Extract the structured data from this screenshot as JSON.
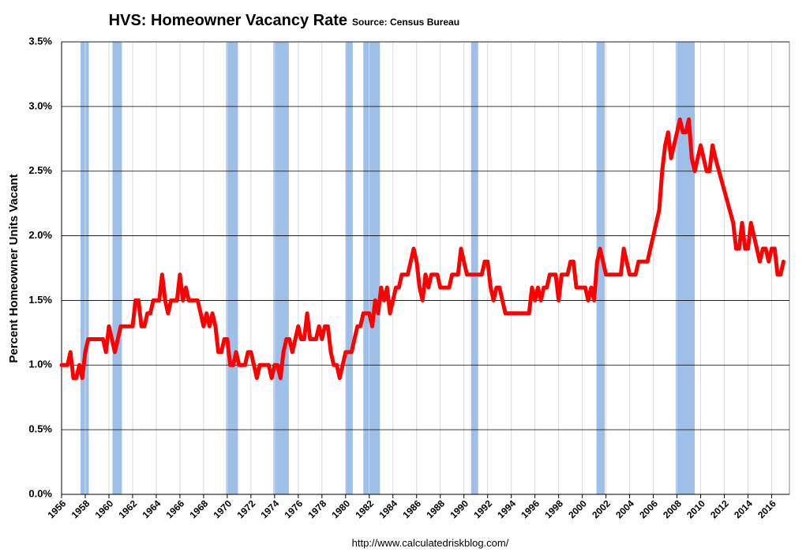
{
  "chart_data": {
    "type": "line",
    "title": "HVS: Homeowner Vacancy Rate",
    "subtitle": "Source: Census Bureau",
    "y_label": "Percent Homeowner Units Vacant",
    "footer": "http://www.calculatedriskblog.com/",
    "xlim": [
      1956,
      2017.5
    ],
    "ylim": [
      0,
      3.5
    ],
    "xticks": [
      1956,
      1958,
      1960,
      1962,
      1964,
      1966,
      1968,
      1970,
      1972,
      1974,
      1976,
      1978,
      1980,
      1982,
      1984,
      1986,
      1988,
      1990,
      1992,
      1994,
      1996,
      1998,
      2000,
      2002,
      2004,
      2006,
      2008,
      2010,
      2012,
      2014,
      2016
    ],
    "yticks": [
      {
        "value": 0,
        "label": "0.0%"
      },
      {
        "value": 0.5,
        "label": "0.5%"
      },
      {
        "value": 1,
        "label": "1.0%"
      },
      {
        "value": 1.5,
        "label": "1.5%"
      },
      {
        "value": 2,
        "label": "2.0%"
      },
      {
        "value": 2.5,
        "label": "2.5%"
      },
      {
        "value": 3,
        "label": "3.0%"
      },
      {
        "value": 3.5,
        "label": "3.5%"
      }
    ],
    "grid": true,
    "recession_color": "#9dbfe8",
    "recessions": [
      [
        1957.6,
        1958.3
      ],
      [
        1960.3,
        1961.1
      ],
      [
        1969.9,
        1970.9
      ],
      [
        1973.9,
        1975.2
      ],
      [
        1980.0,
        1980.6
      ],
      [
        1981.5,
        1982.9
      ],
      [
        1990.6,
        1991.2
      ],
      [
        2001.2,
        2001.9
      ],
      [
        2007.9,
        2009.5
      ]
    ],
    "x": [
      1956,
      1956.5,
      1956.75,
      1957,
      1957.25,
      1957.5,
      1957.75,
      1958,
      1958.25,
      1959,
      1959.5,
      1959.75,
      1960,
      1960.25,
      1960.5,
      1960.75,
      1961,
      1962,
      1962.25,
      1962.5,
      1962.75,
      1963,
      1963.25,
      1963.5,
      1963.75,
      1964.25,
      1964.5,
      1964.75,
      1965,
      1965.25,
      1965.75,
      1966,
      1966.25,
      1966.5,
      1966.75,
      1967.5,
      1967.75,
      1968,
      1968.25,
      1968.5,
      1968.75,
      1969,
      1969.25,
      1969.5,
      1969.75,
      1970,
      1970.25,
      1970.5,
      1970.75,
      1971,
      1971.5,
      1971.75,
      1972,
      1972.5,
      1972.75,
      1973.5,
      1973.75,
      1974,
      1974.25,
      1974.5,
      1974.75,
      1975,
      1975.25,
      1975.5,
      1975.75,
      1976,
      1976.25,
      1976.5,
      1976.75,
      1977,
      1977.5,
      1977.75,
      1978,
      1978.25,
      1978.5,
      1978.75,
      1979,
      1979.25,
      1979.5,
      1979.75,
      1980,
      1980.5,
      1980.75,
      1981,
      1981.25,
      1981.5,
      1982,
      1982.25,
      1982.5,
      1982.75,
      1983,
      1983.25,
      1983.5,
      1983.75,
      1984,
      1984.25,
      1984.5,
      1984.75,
      1985.25,
      1985.5,
      1985.75,
      1986,
      1986.25,
      1986.5,
      1986.75,
      1987,
      1987.25,
      1987.75,
      1988,
      1988.75,
      1989,
      1989.5,
      1989.75,
      1990,
      1990.25,
      1991,
      1991.5,
      1991.75,
      1992,
      1992.25,
      1992.5,
      1992.75,
      1993,
      1993.5,
      1995.5,
      1995.75,
      1996,
      1996.25,
      1996.5,
      1996.75,
      1997,
      1997.25,
      1997.75,
      1998,
      1998.25,
      1998.75,
      1999,
      1999.25,
      1999.5,
      2000.25,
      2000.5,
      2000.75,
      2001,
      2001.25,
      2001.5,
      2001.75,
      2002,
      2003.25,
      2003.5,
      2003.75,
      2004,
      2004.5,
      2004.75,
      2005.5,
      2006.5,
      2006.75,
      2007,
      2007.25,
      2007.5,
      2007.75,
      2008,
      2008.25,
      2008.5,
      2008.75,
      2009,
      2009.25,
      2009.5,
      2009.75,
      2010,
      2010.25,
      2010.5,
      2010.75,
      2011,
      2011.25,
      2012.75,
      2013,
      2013.25,
      2013.5,
      2013.75,
      2014,
      2014.25,
      2014.5,
      2015,
      2015.25,
      2015.5,
      2015.75,
      2016,
      2016.25,
      2016.5,
      2016.75,
      2017
    ],
    "series": [
      {
        "name": "Homeowner Vacancy Rate",
        "color": "#ff0000",
        "values": [
          1.0,
          1.0,
          1.1,
          0.9,
          0.9,
          1.0,
          0.9,
          1.1,
          1.2,
          1.2,
          1.2,
          1.1,
          1.3,
          1.2,
          1.1,
          1.2,
          1.3,
          1.3,
          1.5,
          1.5,
          1.3,
          1.3,
          1.4,
          1.4,
          1.5,
          1.5,
          1.7,
          1.5,
          1.4,
          1.5,
          1.5,
          1.7,
          1.5,
          1.6,
          1.5,
          1.5,
          1.4,
          1.3,
          1.4,
          1.3,
          1.4,
          1.3,
          1.1,
          1.1,
          1.2,
          1.2,
          1.0,
          1.0,
          1.1,
          1.0,
          1.0,
          1.1,
          1.1,
          0.9,
          1.0,
          1.0,
          0.9,
          1.0,
          1.0,
          0.9,
          1.1,
          1.2,
          1.2,
          1.1,
          1.2,
          1.3,
          1.2,
          1.2,
          1.4,
          1.2,
          1.2,
          1.3,
          1.2,
          1.3,
          1.3,
          1.1,
          1.0,
          1.0,
          0.9,
          1.0,
          1.1,
          1.1,
          1.2,
          1.3,
          1.3,
          1.4,
          1.4,
          1.3,
          1.5,
          1.4,
          1.6,
          1.5,
          1.6,
          1.4,
          1.5,
          1.6,
          1.6,
          1.7,
          1.7,
          1.8,
          1.9,
          1.8,
          1.6,
          1.5,
          1.7,
          1.6,
          1.7,
          1.7,
          1.6,
          1.6,
          1.7,
          1.7,
          1.9,
          1.8,
          1.7,
          1.7,
          1.7,
          1.8,
          1.8,
          1.6,
          1.5,
          1.6,
          1.6,
          1.4,
          1.4,
          1.6,
          1.5,
          1.6,
          1.5,
          1.6,
          1.6,
          1.7,
          1.7,
          1.5,
          1.7,
          1.7,
          1.8,
          1.8,
          1.6,
          1.6,
          1.5,
          1.6,
          1.5,
          1.8,
          1.9,
          1.8,
          1.7,
          1.7,
          1.9,
          1.8,
          1.7,
          1.7,
          1.8,
          1.8,
          2.2,
          2.5,
          2.7,
          2.8,
          2.6,
          2.7,
          2.8,
          2.9,
          2.8,
          2.8,
          2.9,
          2.6,
          2.5,
          2.6,
          2.7,
          2.6,
          2.5,
          2.5,
          2.7,
          2.6,
          2.1,
          1.9,
          1.9,
          2.1,
          1.9,
          1.9,
          2.1,
          2.0,
          1.8,
          1.9,
          1.9,
          1.8,
          1.9,
          1.9,
          1.7,
          1.7,
          1.8
        ]
      }
    ]
  }
}
